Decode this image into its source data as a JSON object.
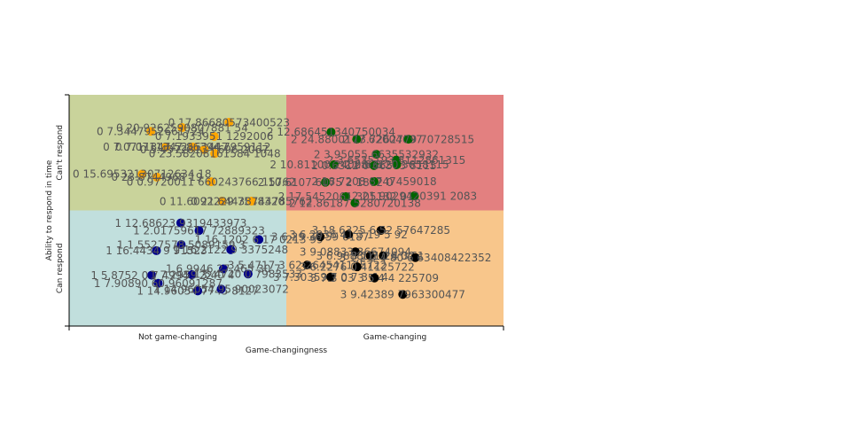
{
  "chart_data": {
    "type": "scatter",
    "title": "",
    "xlabel": "Game-changingness",
    "ylabel": "Ability to respond in time",
    "xlim": [
      0,
      1
    ],
    "ylim": [
      0,
      1
    ],
    "x_ticks": [
      {
        "label": "Not game-changing",
        "value": 0.25
      },
      {
        "label": "Game-changing",
        "value": 0.75
      }
    ],
    "y_ticks": [
      {
        "label": "Can respond",
        "value": 0.25
      },
      {
        "label": "Can't respond",
        "value": 0.75
      }
    ],
    "quadrants": [
      {
        "x": [
          0,
          0.5
        ],
        "y": [
          0.5,
          1
        ],
        "color": "#c9d39b"
      },
      {
        "x": [
          0.5,
          1
        ],
        "y": [
          0.5,
          1
        ],
        "color": "#e38080"
      },
      {
        "x": [
          0,
          0.5
        ],
        "y": [
          0,
          0.5
        ],
        "color": "#c1dfdd"
      },
      {
        "x": [
          0.5,
          1
        ],
        "y": [
          0,
          0.5
        ],
        "color": "#f8c68b"
      }
    ],
    "series": [
      {
        "color": "#ffa500",
        "points": [
          {
            "x": 0.368,
            "y": 0.881,
            "label": "0 17.86680573400523"
          },
          {
            "x": 0.26,
            "y": 0.858,
            "label": "0 20.9262590807881 54"
          },
          {
            "x": 0.188,
            "y": 0.842,
            "label": "0 7.3447952661724"
          },
          {
            "x": 0.334,
            "y": 0.82,
            "label": "0 7.1933951 1292006"
          },
          {
            "x": 0.222,
            "y": 0.774,
            "label": "0 7.0711347 52862447"
          },
          {
            "x": 0.285,
            "y": 0.774,
            "label": "0 7.0711347 86394 7959112"
          },
          {
            "x": 0.311,
            "y": 0.763,
            "label": "0 5.4972813 4696 2067"
          },
          {
            "x": 0.335,
            "y": 0.746,
            "label": "0 23.58208161584 1048"
          },
          {
            "x": 0.168,
            "y": 0.657,
            "label": "0 15.69532130712634 18"
          },
          {
            "x": 0.202,
            "y": 0.644,
            "label": "0 23.8744968 19"
          },
          {
            "x": 0.327,
            "y": 0.624,
            "label": "0 0.9720011 660243766 15762"
          },
          {
            "x": 0.352,
            "y": 0.54,
            "label": "0 11.6092229 7548320"
          },
          {
            "x": 0.42,
            "y": 0.54,
            "label": "0 21.64438744785762"
          }
        ]
      },
      {
        "color": "#006400",
        "points": [
          {
            "x": 0.603,
            "y": 0.839,
            "label": "2 12.686451340750034"
          },
          {
            "x": 0.662,
            "y": 0.808,
            "label": "2 24.8800177 62004697"
          },
          {
            "x": 0.781,
            "y": 0.808,
            "label": "2 13.7262779 70728515"
          },
          {
            "x": 0.707,
            "y": 0.743,
            "label": "2 3.95055 6635532932"
          },
          {
            "x": 0.753,
            "y": 0.718,
            "label": "2 3.6535193 8112861315"
          },
          {
            "x": 0.61,
            "y": 0.698,
            "label": "2 10.81100 2402863 27"
          },
          {
            "x": 0.702,
            "y": 0.694,
            "label": "2 0.6312 0 66583 8115"
          },
          {
            "x": 0.754,
            "y": 0.698,
            "label": "2 0.63120 3658115"
          },
          {
            "x": 0.59,
            "y": 0.622,
            "label": "2 10.6107 6075 2 1872 0"
          },
          {
            "x": 0.702,
            "y": 0.625,
            "label": "2 18.7208 8747459018"
          },
          {
            "x": 0.637,
            "y": 0.56,
            "label": "2 17.5452061 305132 01"
          },
          {
            "x": 0.795,
            "y": 0.563,
            "label": "2 21.9029420391 2083"
          },
          {
            "x": 0.658,
            "y": 0.532,
            "label": "2 12.86187 5280720138"
          }
        ]
      },
      {
        "color": "#00008b",
        "points": [
          {
            "x": 0.257,
            "y": 0.446,
            "label": "1 12.68623 9319433973"
          },
          {
            "x": 0.299,
            "y": 0.413,
            "label": "1 2.01759617 72889323"
          },
          {
            "x": 0.437,
            "y": 0.374,
            "label": "1 16.1202 6 17 0213 99"
          },
          {
            "x": 0.258,
            "y": 0.352,
            "label": "1 1.5527578 5089159 3"
          },
          {
            "x": 0.201,
            "y": 0.326,
            "label": "1 16.4434 9 91523"
          },
          {
            "x": 0.372,
            "y": 0.33,
            "label": "1 16.2122 9 3375248"
          },
          {
            "x": 0.355,
            "y": 0.247,
            "label": "1 6.9946 27 465 30 7"
          },
          {
            "x": 0.412,
            "y": 0.225,
            "label": "1 5.4720 0 7983533"
          },
          {
            "x": 0.19,
            "y": 0.22,
            "label": "1 5.8752 0 7 49949 22"
          },
          {
            "x": 0.283,
            "y": 0.222,
            "label": "1 7.2959 3 40 4"
          },
          {
            "x": 0.205,
            "y": 0.185,
            "label": "1 7.90890 60 96091287"
          },
          {
            "x": 0.296,
            "y": 0.152,
            "label": "1 14.96054 7745 8127"
          },
          {
            "x": 0.35,
            "y": 0.16,
            "label": "1 14.96054 95 90023072"
          }
        ]
      },
      {
        "color": "#000000",
        "points": [
          {
            "x": 0.718,
            "y": 0.414,
            "label": "3 18.6325 6 52 57647285"
          },
          {
            "x": 0.578,
            "y": 0.386,
            "label": "3 6.29 36 59 6187"
          },
          {
            "x": 0.643,
            "y": 0.396,
            "label": "3 6.2936 41 3 19 5 92"
          },
          {
            "x": 0.659,
            "y": 0.321,
            "label": "3 9.08833 36674094"
          },
          {
            "x": 0.693,
            "y": 0.304,
            "label": "3 6.9888 11 26 0 61"
          },
          {
            "x": 0.723,
            "y": 0.304,
            "label": "3 1.2 0 4 32"
          },
          {
            "x": 0.797,
            "y": 0.296,
            "label": "3 1.2 0 4 80 6 63408422352"
          },
          {
            "x": 0.548,
            "y": 0.264,
            "label": "3 5.4717 3 62 264541125722"
          },
          {
            "x": 0.663,
            "y": 0.256,
            "label": "3 6.2276 0 41125722"
          },
          {
            "x": 0.602,
            "y": 0.212,
            "label": "3 7.30359 7 0 7 3 6 4"
          },
          {
            "x": 0.703,
            "y": 0.208,
            "label": "3 7.3 03 3 5 4 4 225709"
          },
          {
            "x": 0.768,
            "y": 0.137,
            "label": "3 9.42389 7963300477"
          }
        ]
      }
    ],
    "grid": false,
    "legend": "none"
  }
}
